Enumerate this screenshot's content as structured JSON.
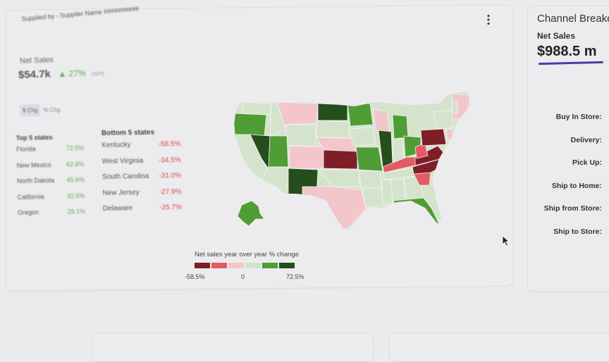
{
  "header": {
    "supplier_label": "Supplied by - Supplier Name ##########"
  },
  "kpi": {
    "label": "Net Sales",
    "value": "$54.7k",
    "change": "27%",
    "period": "(YoY)"
  },
  "toggles": [
    "$ Chg",
    "% Chg"
  ],
  "top_states": {
    "title": "Top 5 states",
    "items": [
      {
        "name": "Florida",
        "value": "72.5%"
      },
      {
        "name": "New Mexico",
        "value": "62.6%"
      },
      {
        "name": "North Dakota",
        "value": "45.6%"
      },
      {
        "name": "California",
        "value": "32.6%"
      },
      {
        "name": "Oregon",
        "value": "29.1%"
      }
    ]
  },
  "bottom_states": {
    "title": "Bottom 5 states",
    "items": [
      {
        "name": "Kentucky",
        "value": "-58.5%"
      },
      {
        "name": "West Virginia",
        "value": "-34.5%"
      },
      {
        "name": "South Carolina",
        "value": "-31.0%"
      },
      {
        "name": "New Jersey",
        "value": "-27.9%"
      },
      {
        "name": "Delaware",
        "value": "-25.7%"
      }
    ]
  },
  "legend": {
    "title": "Net sales year over year % change",
    "min_label": "-58.5%",
    "mid_label": "0",
    "max_label": "72.5%",
    "colors": [
      "#7e1f27",
      "#e35b62",
      "#f3c6cc",
      "#d2e3cb",
      "#4f9d34",
      "#264d1c"
    ]
  },
  "side_panel": {
    "title": "Channel Breakdown",
    "subtitle": "Net Sales",
    "value": "$988.5 m",
    "channels": [
      "Buy In Store:",
      "Delivery:",
      "Pick Up:",
      "Ship to Home:",
      "Ship from Store:",
      "Ship to Store:"
    ],
    "accent_color": "#4b3aa8"
  },
  "icons": {
    "menu": "more-vert-icon",
    "cursor": "mouse-pointer-icon"
  }
}
